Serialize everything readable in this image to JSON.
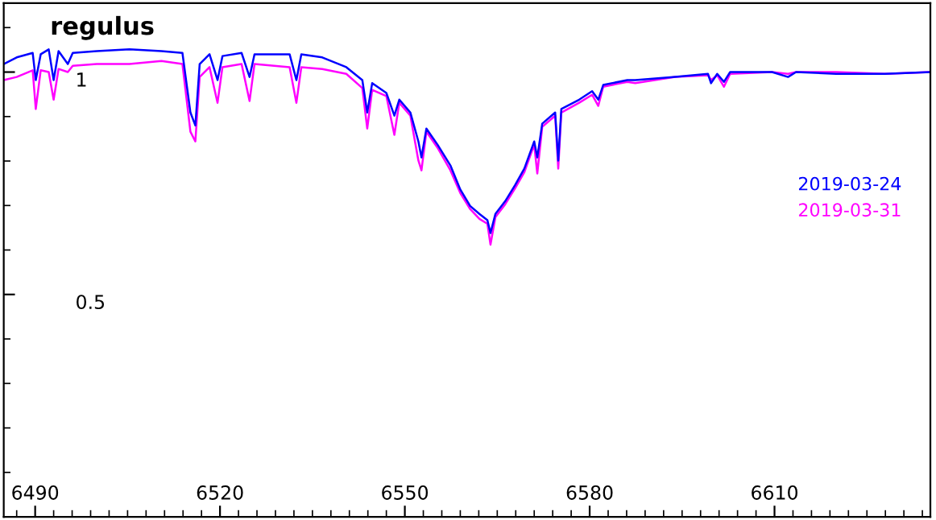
{
  "chart_data": {
    "type": "line",
    "title": "regulus",
    "x": [
      6484.9,
      6487.0,
      6489.6,
      6490.1,
      6490.9,
      6492.2,
      6493.0,
      6493.8,
      6495.3,
      6496.1,
      6500.0,
      6505.3,
      6510.5,
      6513.9,
      6515.2,
      6516.0,
      6516.7,
      6518.3,
      6519.6,
      6520.4,
      6523.5,
      6524.8,
      6525.6,
      6531.3,
      6532.4,
      6533.2,
      6536.6,
      6540.5,
      6543.1,
      6543.9,
      6544.7,
      6547.0,
      6548.3,
      6549.1,
      6550.9,
      6552.2,
      6552.7,
      6553.5,
      6555.3,
      6557.4,
      6559.0,
      6560.6,
      6562.1,
      6563.4,
      6563.9,
      6564.7,
      6566.3,
      6567.9,
      6569.4,
      6571.0,
      6571.5,
      6572.3,
      6574.4,
      6574.9,
      6575.4,
      6578.3,
      6580.4,
      6581.4,
      6582.2,
      6586.1,
      6587.4,
      6593.9,
      6599.2,
      6599.7,
      6600.7,
      6601.8,
      6602.8,
      6609.6,
      6612.2,
      6613.5,
      6620.0,
      6627.9,
      6635.2
    ],
    "series": [
      {
        "name": "2019-03-24",
        "color": "#0000ff",
        "values": [
          1.018,
          1.033,
          1.043,
          0.982,
          1.04,
          1.051,
          0.982,
          1.047,
          1.018,
          1.043,
          1.047,
          1.051,
          1.047,
          1.043,
          0.909,
          0.88,
          1.018,
          1.04,
          0.982,
          1.036,
          1.043,
          0.989,
          1.04,
          1.04,
          0.982,
          1.04,
          1.033,
          1.011,
          0.982,
          0.909,
          0.975,
          0.953,
          0.902,
          0.938,
          0.909,
          0.844,
          0.808,
          0.873,
          0.837,
          0.79,
          0.736,
          0.699,
          0.681,
          0.667,
          0.638,
          0.681,
          0.71,
          0.746,
          0.783,
          0.844,
          0.808,
          0.884,
          0.909,
          0.801,
          0.917,
          0.938,
          0.957,
          0.938,
          0.971,
          0.982,
          0.982,
          0.989,
          0.996,
          0.975,
          0.996,
          0.978,
          1.0,
          1.0,
          0.989,
          1.0,
          0.996,
          0.996,
          1.0
        ]
      },
      {
        "name": "2019-03-31",
        "color": "#ff00ff",
        "values": [
          0.982,
          0.989,
          1.004,
          0.917,
          1.004,
          1.0,
          0.938,
          1.007,
          1.0,
          1.014,
          1.018,
          1.018,
          1.025,
          1.018,
          0.866,
          0.844,
          0.989,
          1.011,
          0.931,
          1.011,
          1.018,
          0.935,
          1.018,
          1.011,
          0.931,
          1.011,
          1.007,
          0.996,
          0.964,
          0.873,
          0.96,
          0.946,
          0.859,
          0.931,
          0.902,
          0.801,
          0.779,
          0.866,
          0.83,
          0.779,
          0.728,
          0.692,
          0.67,
          0.659,
          0.612,
          0.674,
          0.703,
          0.739,
          0.775,
          0.837,
          0.772,
          0.877,
          0.902,
          0.783,
          0.909,
          0.931,
          0.949,
          0.924,
          0.967,
          0.978,
          0.975,
          0.989,
          0.993,
          0.982,
          0.993,
          0.967,
          0.996,
          1.0,
          0.996,
          1.0,
          1.0,
          0.996,
          1.0
        ]
      }
    ],
    "xlim": [
      6484.9,
      6635.3
    ],
    "xticks": [
      {
        "value": 6487,
        "label": null
      },
      6490,
      {
        "value": 6493,
        "label": null
      },
      {
        "value": 6496,
        "label": null
      },
      {
        "value": 6499,
        "label": null
      },
      {
        "value": 6502,
        "label": null
      },
      {
        "value": 6505,
        "label": null
      },
      {
        "value": 6508,
        "label": null
      },
      {
        "value": 6511,
        "label": null
      },
      {
        "value": 6514,
        "label": null
      },
      {
        "value": 6517,
        "label": null
      },
      6520,
      {
        "value": 6523,
        "label": null
      },
      {
        "value": 6526,
        "label": null
      },
      {
        "value": 6529,
        "label": null
      },
      {
        "value": 6532,
        "label": null
      },
      {
        "value": 6535,
        "label": null
      },
      {
        "value": 6538,
        "label": null
      },
      {
        "value": 6541,
        "label": null
      },
      {
        "value": 6544,
        "label": null
      },
      {
        "value": 6547,
        "label": null
      },
      6550,
      {
        "value": 6553,
        "label": null
      },
      {
        "value": 6556,
        "label": null
      },
      {
        "value": 6559,
        "label": null
      },
      {
        "value": 6562,
        "label": null
      },
      {
        "value": 6565,
        "label": null
      },
      {
        "value": 6568,
        "label": null
      },
      {
        "value": 6571,
        "label": null
      },
      {
        "value": 6574,
        "label": null
      },
      {
        "value": 6577,
        "label": null
      },
      6580,
      {
        "value": 6583,
        "label": null
      },
      {
        "value": 6586,
        "label": null
      },
      {
        "value": 6589,
        "label": null
      },
      {
        "value": 6592,
        "label": null
      },
      {
        "value": 6595,
        "label": null
      },
      {
        "value": 6598,
        "label": null
      },
      {
        "value": 6601,
        "label": null
      },
      {
        "value": 6604,
        "label": null
      },
      {
        "value": 6607,
        "label": null
      },
      6610,
      {
        "value": 6613,
        "label": null
      },
      {
        "value": 6616,
        "label": null
      },
      {
        "value": 6619,
        "label": null
      },
      {
        "value": 6622,
        "label": null
      },
      {
        "value": 6625,
        "label": null
      },
      {
        "value": 6628,
        "label": null
      },
      {
        "value": 6631,
        "label": null
      },
      {
        "value": 6634,
        "label": null
      }
    ],
    "ylim": [
      0,
      1.155
    ],
    "yticks": [
      {
        "value": 0.1,
        "label": null
      },
      {
        "value": 0.2,
        "label": null
      },
      {
        "value": 0.3,
        "label": null
      },
      {
        "value": 0.4,
        "label": null
      },
      0.5,
      {
        "value": 0.6,
        "label": null
      },
      {
        "value": 0.7,
        "label": null
      },
      {
        "value": 0.8,
        "label": null
      },
      {
        "value": 0.9,
        "label": null
      },
      1,
      {
        "value": 1.1,
        "label": null
      }
    ],
    "grid": false,
    "legend": "right",
    "marker": "none",
    "line_style": "solid"
  }
}
